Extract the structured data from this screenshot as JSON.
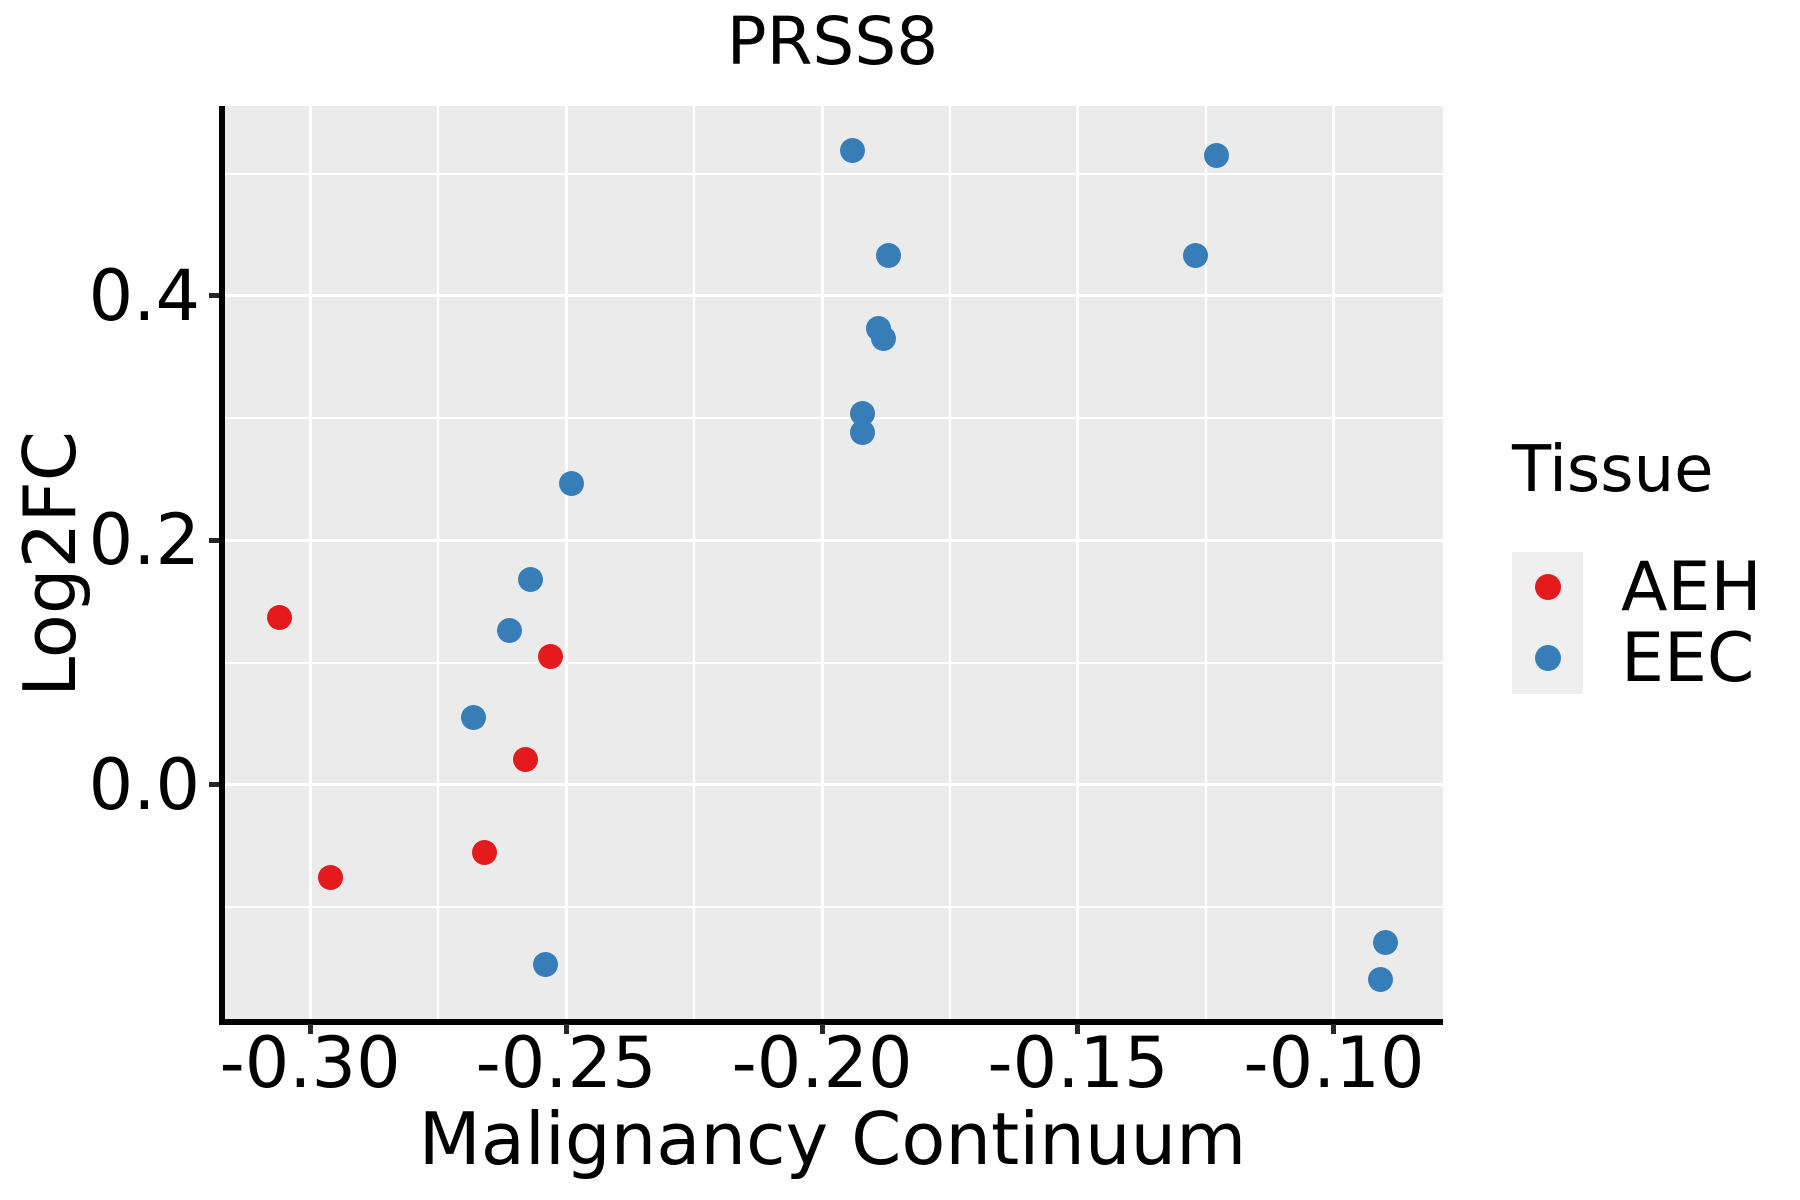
{
  "colors": {
    "aeh": "#E41A1C",
    "eec": "#377EB8",
    "panel_bg": "#EBEBEB",
    "grid": "#FFFFFF",
    "legend_key_bg": "#EFEFEF",
    "spine": "#000000",
    "tick": "#262626",
    "text": "#000000"
  },
  "chart_data": {
    "type": "scatter",
    "title": "PRSS8",
    "xlabel": "Malignancy Continuum",
    "ylabel": "Log2FC",
    "xlim": [
      -0.3172,
      -0.0787
    ],
    "ylim": [
      -0.1939,
      0.5554
    ],
    "x_major_ticks": [
      -0.3,
      -0.25,
      -0.2,
      -0.15,
      -0.1
    ],
    "x_tick_labels": [
      "-0.30",
      "-0.25",
      "-0.20",
      "-0.15",
      "-0.10"
    ],
    "x_minor_gridlines": [
      -0.275,
      -0.225,
      -0.175,
      -0.125
    ],
    "y_major_ticks": [
      0.0,
      0.2,
      0.4
    ],
    "y_tick_labels": [
      "0.0",
      "0.2",
      "0.4"
    ],
    "y_minor_gridlines": [
      -0.1,
      0.1,
      0.3,
      0.5
    ],
    "grid": "white major+minor gridlines on gray panel",
    "legend": {
      "title": "Tissue",
      "position": "right",
      "entries": [
        {
          "label": "AEH",
          "color": "#E41A1C"
        },
        {
          "label": "EEC",
          "color": "#377EB8"
        }
      ]
    },
    "series": [
      {
        "name": "AEH",
        "color": "#E41A1C",
        "points": [
          [
            -0.306,
            0.137
          ],
          [
            -0.296,
            -0.076
          ],
          [
            -0.266,
            -0.055
          ],
          [
            -0.258,
            0.021
          ],
          [
            -0.253,
            0.105
          ]
        ]
      },
      {
        "name": "EEC",
        "color": "#377EB8",
        "points": [
          [
            -0.268,
            0.055
          ],
          [
            -0.261,
            0.126
          ],
          [
            -0.257,
            0.168
          ],
          [
            -0.249,
            0.247
          ],
          [
            -0.254,
            -0.147
          ],
          [
            -0.194,
            0.519
          ],
          [
            -0.189,
            0.373
          ],
          [
            -0.188,
            0.365
          ],
          [
            -0.192,
            0.304
          ],
          [
            -0.192,
            0.288
          ],
          [
            -0.187,
            0.433
          ],
          [
            -0.123,
            0.515
          ],
          [
            -0.127,
            0.433
          ],
          [
            -0.09,
            -0.129
          ],
          [
            -0.091,
            -0.159
          ]
        ]
      }
    ]
  }
}
